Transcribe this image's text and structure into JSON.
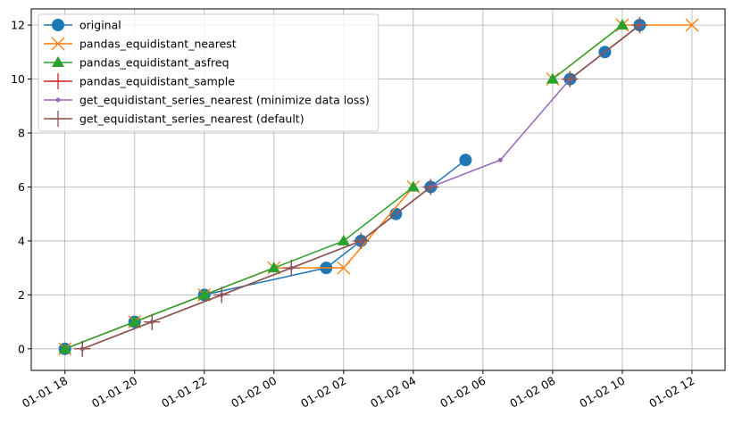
{
  "chart_data": {
    "type": "line",
    "xlim": [
      "01-01 17:02",
      "01-02 12:57"
    ],
    "xticks": [
      "01-01 18",
      "01-01 20",
      "01-01 22",
      "01-02 00",
      "01-02 02",
      "01-02 04",
      "01-02 06",
      "01-02 08",
      "01-02 10",
      "01-02 12"
    ],
    "ylim": [
      -0.8,
      12.6
    ],
    "yticks": [
      0,
      2,
      4,
      6,
      8,
      10,
      12
    ],
    "grid": true,
    "legend": "upper left",
    "series": [
      {
        "name": "original",
        "color": "#1f77b4",
        "marker": "circle",
        "x": [
          "01-01 18:00",
          "01-01 20:00",
          "01-01 22:00",
          "01-02 01:30",
          "01-02 02:30",
          "01-02 03:30",
          "01-02 04:30",
          "01-02 05:30",
          "01-02 07:00",
          "01-02 08:30",
          "01-02 09:30",
          "01-02 10:30"
        ],
        "values": [
          0,
          1,
          2,
          3,
          4,
          5,
          6,
          7,
          null,
          10,
          11,
          12
        ]
      },
      {
        "name": "pandas_equidistant_nearest",
        "color": "#ff7f0e",
        "marker": "x",
        "x": [
          "01-01 18:00",
          "01-01 20:00",
          "01-01 22:00",
          "01-02 00:00",
          "01-02 02:00",
          "01-02 04:00",
          "01-02 06:00",
          "01-02 08:00",
          "01-02 10:00",
          "01-02 12:00"
        ],
        "values": [
          0,
          1,
          2,
          3,
          3,
          6,
          null,
          10,
          12,
          12
        ]
      },
      {
        "name": "pandas_equidistant_asfreq",
        "color": "#2ca02c",
        "marker": "triangle",
        "x": [
          "01-01 18:00",
          "01-01 20:00",
          "01-01 22:00",
          "01-02 00:00",
          "01-02 02:00",
          "01-02 04:00",
          "01-02 06:00",
          "01-02 08:00",
          "01-02 10:00"
        ],
        "values": [
          0,
          1,
          2,
          3,
          4,
          6,
          null,
          10,
          12
        ]
      },
      {
        "name": "pandas_equidistant_sample",
        "color": "#d62728",
        "marker": "plus",
        "x": [
          "01-01 18:30",
          "01-01 20:30",
          "01-01 22:30",
          "01-02 00:30",
          "01-02 02:30",
          "01-02 04:30",
          "01-02 06:30",
          "01-02 08:30",
          "01-02 10:30"
        ],
        "values": [
          0,
          1,
          2,
          3,
          4,
          6,
          null,
          10,
          12
        ]
      },
      {
        "name": "get_equidistant_series_nearest (minimize data loss)",
        "color": "#9467bd",
        "marker": "dot",
        "x": [
          "01-01 18:30",
          "01-01 20:30",
          "01-01 22:30",
          "01-02 00:30",
          "01-02 02:30",
          "01-02 04:30",
          "01-02 06:30",
          "01-02 08:30",
          "01-02 10:30"
        ],
        "values": [
          0,
          1,
          2,
          3,
          4,
          6,
          7,
          10,
          12
        ]
      },
      {
        "name": "get_equidistant_series_nearest (default)",
        "color": "#8c564b",
        "marker": "plus",
        "x": [
          "01-01 18:30",
          "01-01 20:30",
          "01-01 22:30",
          "01-02 00:30",
          "01-02 02:30",
          "01-02 04:30",
          "01-02 06:30",
          "01-02 08:30",
          "01-02 10:30"
        ],
        "values": [
          0,
          1,
          2,
          3,
          4,
          6,
          null,
          10,
          12
        ]
      }
    ]
  }
}
